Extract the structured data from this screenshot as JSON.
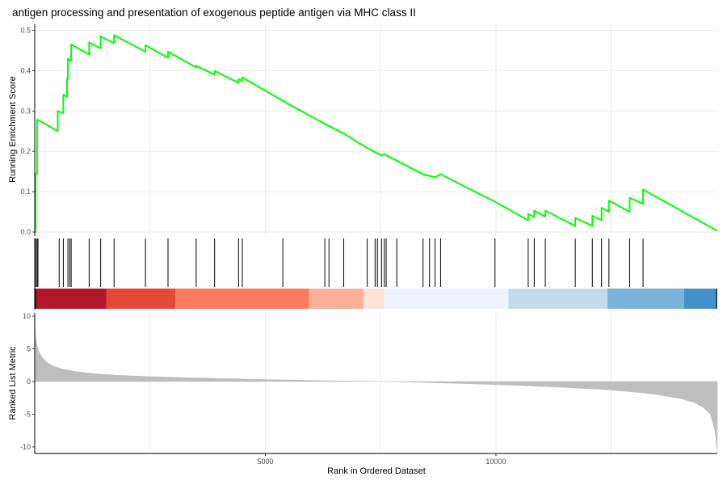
{
  "chart_data": {
    "type": "line",
    "title": "antigen processing and presentation of exogenous peptide antigen via MHC class II",
    "xlabel": "Rank in Ordered Dataset",
    "x_range": [
      0,
      14800
    ],
    "x_ticks": [
      5000,
      10000
    ],
    "x_tick_labels": [
      "5000",
      "10000"
    ],
    "grid": true,
    "panels": [
      {
        "name": "running-enrichment",
        "ylabel": "Running Enrichment Score",
        "ylim": [
          -0.01,
          0.515
        ],
        "y_ticks": [
          0.0,
          0.1,
          0.2,
          0.3,
          0.4,
          0.5
        ],
        "y_tick_labels": [
          "0.0",
          "0.1",
          "0.2",
          "0.3",
          "0.4",
          "0.5"
        ],
        "line_color": "#00ff00",
        "series": [
          {
            "x": [
              0,
              20,
              20,
              50,
              50,
              70,
              70,
              500,
              500,
              530,
              530,
              620,
              620,
              700,
              700,
              720,
              720,
              760,
              760,
              790,
              790,
              1180,
              1180,
              1430,
              1430,
              1720,
              1720,
              2400,
              2400,
              2890,
              2890,
              3500,
              3500,
              3900,
              3900,
              4420,
              4420,
              4500,
              4500,
              4580,
              4580,
              5380,
              5380,
              6290,
              6290,
              6380,
              6380,
              6700,
              6700,
              7210,
              7210,
              7380,
              7380,
              7430,
              7430,
              7520,
              7520,
              7580,
              7580,
              7620,
              7620,
              7850,
              7850,
              8420,
              8420,
              8560,
              8560,
              8680,
              8680,
              8800,
              8800,
              9980,
              9980,
              10700,
              10700,
              10830,
              10830,
              11070,
              11070,
              11720,
              11720,
              12090,
              12090,
              12290,
              12290,
              12450,
              12450,
              12900,
              12900,
              13190,
              13190,
              14800
            ],
            "y": [
              0.0,
              0.0,
              0.145,
              0.145,
              0.278,
              0.278,
              0.278,
              0.25,
              0.3,
              0.298,
              0.298,
              0.295,
              0.34,
              0.335,
              0.38,
              0.38,
              0.43,
              0.425,
              0.425,
              0.425,
              0.465,
              0.44,
              0.47,
              0.455,
              0.485,
              0.468,
              0.488,
              0.447,
              0.463,
              0.432,
              0.447,
              0.408,
              0.412,
              0.39,
              0.399,
              0.37,
              0.379,
              0.375,
              0.383,
              0.378,
              0.378,
              0.325,
              0.325,
              0.268,
              0.268,
              0.263,
              0.263,
              0.244,
              0.244,
              0.208,
              0.208,
              0.198,
              0.198,
              0.195,
              0.195,
              0.19,
              0.19,
              0.193,
              0.193,
              0.19,
              0.19,
              0.177,
              0.177,
              0.143,
              0.143,
              0.139,
              0.139,
              0.136,
              0.136,
              0.143,
              0.143,
              0.075,
              0.075,
              0.029,
              0.045,
              0.037,
              0.053,
              0.038,
              0.053,
              0.015,
              0.035,
              0.015,
              0.04,
              0.029,
              0.06,
              0.05,
              0.078,
              0.05,
              0.085,
              0.07,
              0.105,
              0.003
            ]
          }
        ]
      },
      {
        "name": "gene-hits",
        "hits": [
          20,
          50,
          70,
          530,
          620,
          720,
          760,
          790,
          1180,
          1430,
          1720,
          2400,
          2890,
          3500,
          3900,
          4420,
          4500,
          5380,
          6290,
          6380,
          6700,
          7210,
          7380,
          7430,
          7520,
          7580,
          7620,
          7850,
          8420,
          8560,
          8680,
          8800,
          9980,
          10700,
          10830,
          11070,
          11720,
          12090,
          12290,
          12450,
          12900,
          13190
        ],
        "color_bands": [
          {
            "start": 0,
            "end": 1550,
            "color": "#b2182b"
          },
          {
            "start": 1550,
            "end": 3050,
            "color": "#e34a33"
          },
          {
            "start": 3050,
            "end": 5950,
            "color": "#fc7a5d"
          },
          {
            "start": 5950,
            "end": 7130,
            "color": "#fcb09a"
          },
          {
            "start": 7130,
            "end": 7580,
            "color": "#fde4d8"
          },
          {
            "start": 7580,
            "end": 10270,
            "color": "#eef3fb"
          },
          {
            "start": 10270,
            "end": 12420,
            "color": "#c3dbe8"
          },
          {
            "start": 12420,
            "end": 14080,
            "color": "#78b3d8"
          },
          {
            "start": 14080,
            "end": 14800,
            "color": "#4590c7"
          }
        ]
      },
      {
        "name": "ranked-list",
        "ylabel": "Ranked List Metric",
        "ylim": [
          -11,
          10.5
        ],
        "y_ticks": [
          10,
          5,
          0,
          -5,
          -10
        ],
        "y_tick_labels": [
          "10",
          "5",
          "0",
          "-5",
          "-10"
        ],
        "fill_color": "#bebebe",
        "series": [
          {
            "x": [
              0,
              15,
              40,
              80,
              150,
              250,
              400,
              600,
              900,
              1300,
              1800,
              2500,
              3500,
              5000,
              6500,
              7600,
              8500,
              9500,
              10500,
              11500,
              12300,
              13000,
              13500,
              14000,
              14300,
              14500,
              14650,
              14750,
              14800
            ],
            "y": [
              10,
              7.0,
              5.8,
              4.7,
              3.8,
              3.0,
              2.4,
              1.9,
              1.5,
              1.2,
              0.95,
              0.75,
              0.55,
              0.3,
              0.1,
              0.0,
              -0.15,
              -0.35,
              -0.6,
              -0.9,
              -1.2,
              -1.6,
              -2.0,
              -2.6,
              -3.2,
              -4.0,
              -5.0,
              -7.5,
              -10.8
            ]
          }
        ]
      }
    ]
  }
}
